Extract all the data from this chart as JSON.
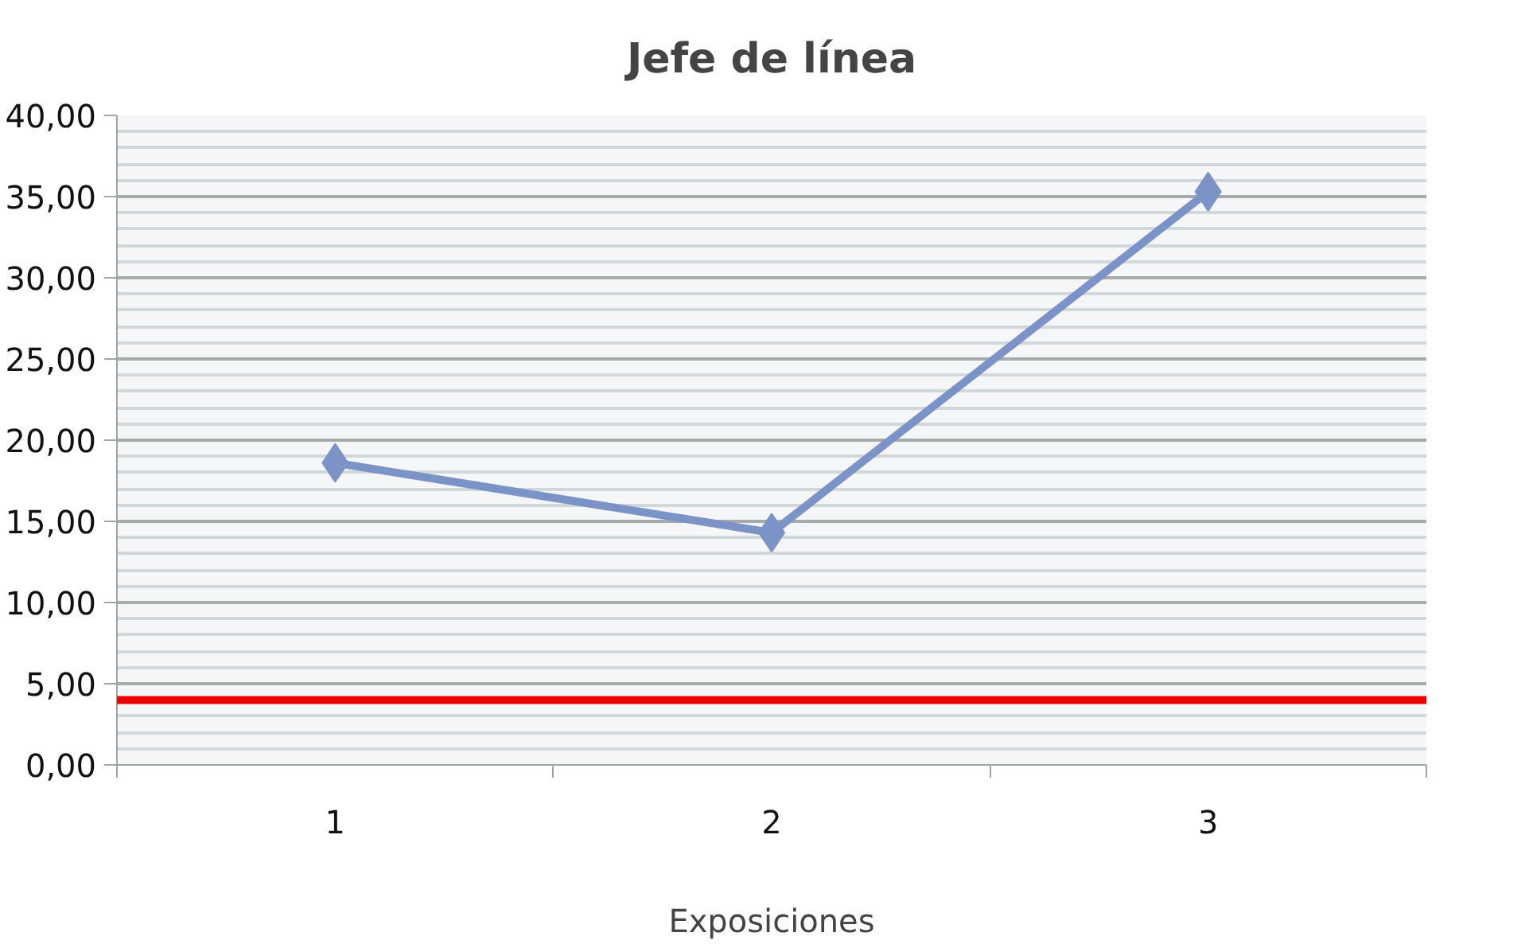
{
  "chart_data": {
    "type": "line",
    "title": "Jefe de línea",
    "xlabel": "Exposiciones",
    "categories": [
      "1",
      "2",
      "3"
    ],
    "series": [
      {
        "color": "#7b93c6",
        "values": [
          18.6,
          14.3,
          35.3
        ]
      }
    ],
    "marker": "diamond",
    "ylim": [
      0,
      40
    ],
    "yticks": [
      {
        "value": 0,
        "label": "0,00"
      },
      {
        "value": 5,
        "label": "5,00"
      },
      {
        "value": 10,
        "label": "10,00"
      },
      {
        "value": 15,
        "label": "15,00"
      },
      {
        "value": 20,
        "label": "20,00"
      },
      {
        "value": 25,
        "label": "25,00"
      },
      {
        "value": 30,
        "label": "30,00"
      },
      {
        "value": 35,
        "label": "35,00"
      },
      {
        "value": 40,
        "label": "40,00"
      }
    ],
    "grid": "y",
    "ref_lines": [
      {
        "axis": "y",
        "value": 4,
        "color": "#ee0000"
      }
    ]
  }
}
